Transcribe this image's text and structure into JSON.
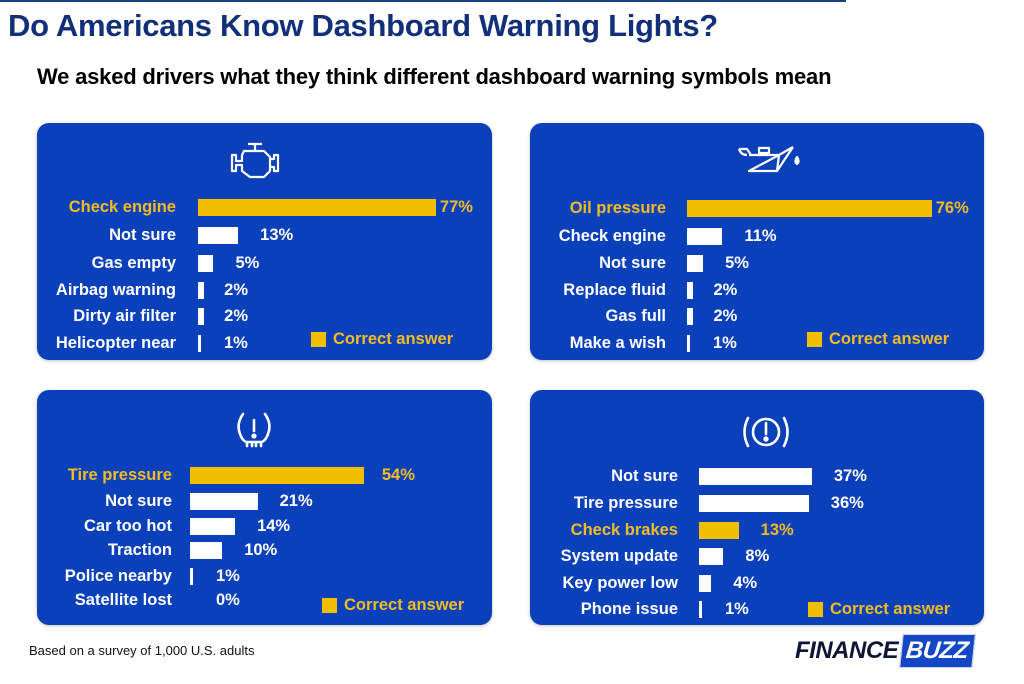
{
  "header": {
    "title": "Do Americans Know Dashboard Warning Lights?",
    "subtitle": "We asked drivers what they think different dashboard warning symbols mean"
  },
  "colors": {
    "panel_bg": "#0a40b9",
    "correct": "#f2be00",
    "other": "#ffffff",
    "title": "#122f7a"
  },
  "legend_label": "Correct answer",
  "footer": {
    "note": "Based on a survey of 1,000 U.S. adults",
    "logo_part1": "FINANCE",
    "logo_part2": "BUZZ"
  },
  "chart_data": [
    {
      "type": "bar",
      "orientation": "horizontal",
      "icon": "check-engine-icon",
      "title": "Check engine light",
      "categories": [
        "Check engine",
        "Not sure",
        "Gas empty",
        "Airbag warning",
        "Dirty air filter",
        "Helicopter near"
      ],
      "values": [
        77,
        13,
        5,
        2,
        2,
        1
      ],
      "value_labels": [
        "77%",
        "13%",
        "5%",
        "2%",
        "2%",
        "1%"
      ],
      "correct_index": 0,
      "unit": "%",
      "legend": "Correct answer",
      "legend_position": "bottom-right"
    },
    {
      "type": "bar",
      "orientation": "horizontal",
      "icon": "oil-can-icon",
      "title": "Oil pressure light",
      "categories": [
        "Oil pressure",
        "Check engine",
        "Not sure",
        "Replace fluid",
        "Gas full",
        "Make a wish"
      ],
      "values": [
        76,
        11,
        5,
        2,
        2,
        1
      ],
      "value_labels": [
        "76%",
        "11%",
        "5%",
        "2%",
        "2%",
        "1%"
      ],
      "correct_index": 0,
      "unit": "%",
      "legend": "Correct answer",
      "legend_position": "bottom-right"
    },
    {
      "type": "bar",
      "orientation": "horizontal",
      "icon": "tire-pressure-icon",
      "title": "Tire pressure light",
      "categories": [
        "Tire pressure",
        "Not sure",
        "Car too hot",
        "Traction",
        "Police nearby",
        "Satellite lost"
      ],
      "values": [
        54,
        21,
        14,
        10,
        1,
        0
      ],
      "value_labels": [
        "54%",
        "21%",
        "14%",
        "10%",
        "1%",
        "0%"
      ],
      "correct_index": 0,
      "unit": "%",
      "legend": "Correct answer",
      "legend_position": "bottom-right"
    },
    {
      "type": "bar",
      "orientation": "horizontal",
      "icon": "brake-warning-icon",
      "title": "Brake warning light",
      "categories": [
        "Not sure",
        "Tire pressure",
        "Check brakes",
        "System update",
        "Key power low",
        "Phone issue"
      ],
      "values": [
        37,
        36,
        13,
        8,
        4,
        1
      ],
      "value_labels": [
        "37%",
        "36%",
        "13%",
        "8%",
        "4%",
        "1%"
      ],
      "correct_index": 2,
      "unit": "%",
      "legend": "Correct answer",
      "legend_position": "bottom-right"
    }
  ]
}
